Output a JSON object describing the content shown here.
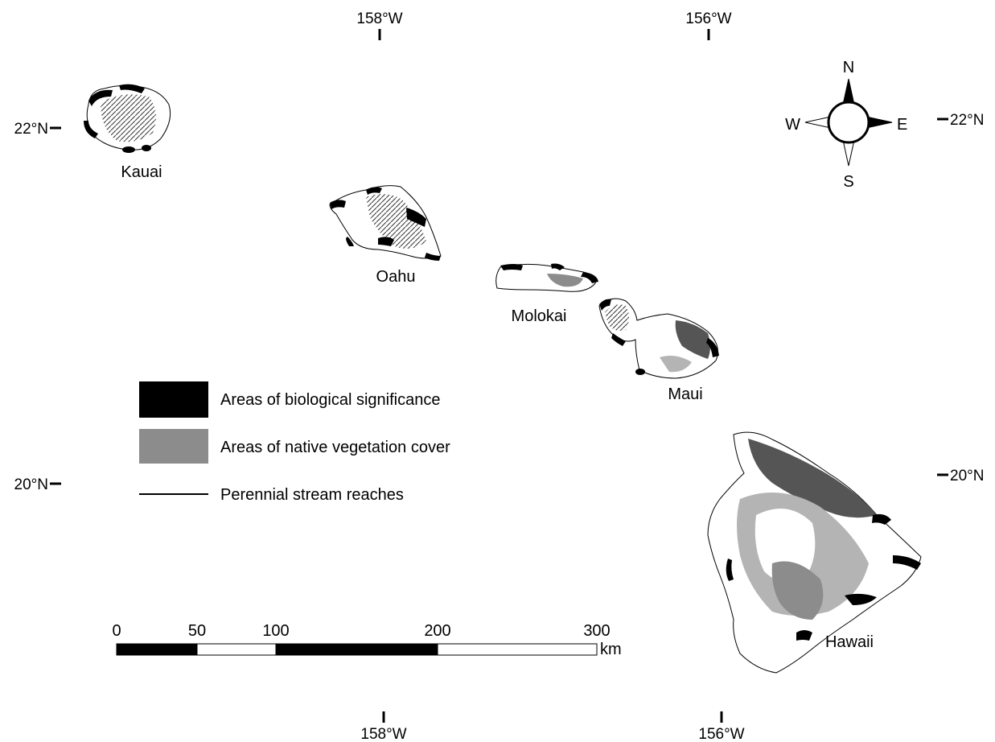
{
  "graticule": {
    "top_left_lon": "158°W",
    "top_right_lon": "156°W",
    "bottom_left_lon": "158°W",
    "bottom_right_lon": "156°W",
    "left_upper_lat": "22°N",
    "left_lower_lat": "20°N",
    "right_upper_lat": "22°N",
    "right_lower_lat": "20°N"
  },
  "islands": {
    "kauai": "Kauai",
    "oahu": "Oahu",
    "molokai": "Molokai",
    "maui": "Maui",
    "hawaii": "Hawaii"
  },
  "compass": {
    "n": "N",
    "s": "S",
    "e": "E",
    "w": "W"
  },
  "legend": {
    "items": [
      {
        "label": "Areas of biological significance",
        "color": "#000000"
      },
      {
        "label": "Areas of native vegetation cover",
        "color": "#8c8c8c"
      },
      {
        "label": "Perennial stream reaches",
        "color": "#000000"
      }
    ]
  },
  "scale_bar": {
    "ticks": [
      "0",
      "50",
      "100",
      "200",
      "300"
    ],
    "unit": "km"
  }
}
